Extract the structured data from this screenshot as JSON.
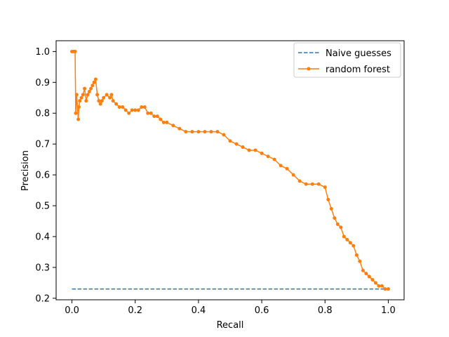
{
  "chart_data": {
    "type": "line",
    "title": "",
    "xlabel": "Recall",
    "ylabel": "Precision",
    "xlim": [
      -0.05,
      1.05
    ],
    "ylim": [
      0.195,
      1.035
    ],
    "xticks": [
      0.0,
      0.2,
      0.4,
      0.6,
      0.8,
      1.0
    ],
    "xtick_labels": [
      "0.0",
      "0.2",
      "0.4",
      "0.6",
      "0.8",
      "1.0"
    ],
    "yticks": [
      0.2,
      0.3,
      0.4,
      0.5,
      0.6,
      0.7,
      0.8,
      0.9,
      1.0
    ],
    "ytick_labels": [
      "0.2",
      "0.3",
      "0.4",
      "0.5",
      "0.6",
      "0.7",
      "0.8",
      "0.9",
      "1.0"
    ],
    "grid": false,
    "legend_position": "top-right",
    "series": [
      {
        "name": "Naive guesses",
        "style": "dashed",
        "marker": "none",
        "color": "#1f77b4",
        "x": [
          0.0,
          1.0
        ],
        "y": [
          0.23,
          0.23
        ]
      },
      {
        "name": "random forest",
        "style": "solid",
        "marker": "dot",
        "color": "#ff7f0e",
        "x": [
          0.0,
          0.005,
          0.01,
          0.012,
          0.015,
          0.02,
          0.022,
          0.025,
          0.03,
          0.035,
          0.04,
          0.045,
          0.05,
          0.055,
          0.06,
          0.065,
          0.07,
          0.075,
          0.08,
          0.085,
          0.09,
          0.095,
          0.1,
          0.11,
          0.12,
          0.125,
          0.13,
          0.14,
          0.15,
          0.16,
          0.17,
          0.18,
          0.19,
          0.2,
          0.21,
          0.22,
          0.23,
          0.24,
          0.25,
          0.26,
          0.27,
          0.28,
          0.29,
          0.3,
          0.32,
          0.34,
          0.36,
          0.38,
          0.4,
          0.42,
          0.44,
          0.46,
          0.48,
          0.5,
          0.52,
          0.54,
          0.56,
          0.58,
          0.6,
          0.62,
          0.64,
          0.66,
          0.68,
          0.7,
          0.72,
          0.74,
          0.76,
          0.78,
          0.8,
          0.81,
          0.82,
          0.83,
          0.84,
          0.85,
          0.86,
          0.87,
          0.88,
          0.89,
          0.9,
          0.91,
          0.92,
          0.93,
          0.94,
          0.95,
          0.96,
          0.97,
          0.98,
          0.99,
          1.0
        ],
        "y": [
          1.0,
          1.0,
          1.0,
          0.8,
          0.86,
          0.78,
          0.82,
          0.84,
          0.85,
          0.86,
          0.88,
          0.84,
          0.86,
          0.87,
          0.88,
          0.89,
          0.9,
          0.91,
          0.86,
          0.84,
          0.83,
          0.84,
          0.85,
          0.86,
          0.85,
          0.86,
          0.84,
          0.83,
          0.82,
          0.82,
          0.81,
          0.8,
          0.81,
          0.81,
          0.81,
          0.82,
          0.82,
          0.8,
          0.8,
          0.79,
          0.79,
          0.78,
          0.77,
          0.77,
          0.76,
          0.75,
          0.74,
          0.74,
          0.74,
          0.74,
          0.74,
          0.74,
          0.73,
          0.71,
          0.7,
          0.69,
          0.68,
          0.68,
          0.67,
          0.66,
          0.65,
          0.63,
          0.62,
          0.6,
          0.58,
          0.57,
          0.57,
          0.57,
          0.56,
          0.52,
          0.49,
          0.46,
          0.44,
          0.43,
          0.4,
          0.39,
          0.38,
          0.37,
          0.34,
          0.32,
          0.29,
          0.28,
          0.27,
          0.26,
          0.25,
          0.24,
          0.24,
          0.23,
          0.23
        ]
      }
    ]
  },
  "legend": {
    "items": [
      {
        "label": "Naive guesses"
      },
      {
        "label": "random forest"
      }
    ]
  },
  "colors": {
    "naive": "#1f77b4",
    "model": "#ff7f0e"
  }
}
